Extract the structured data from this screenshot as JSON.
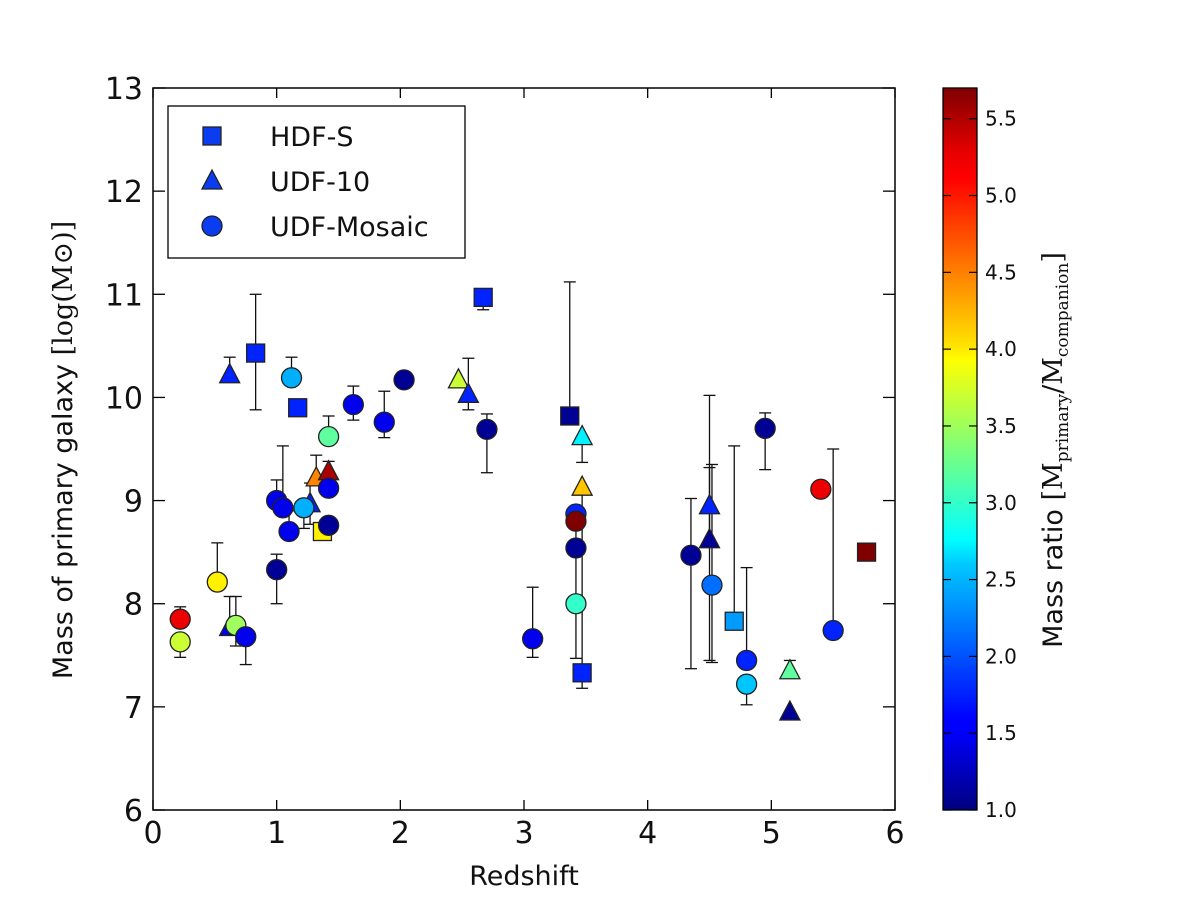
{
  "chart_data": {
    "type": "scatter",
    "title": "",
    "xlabel": "Redshift",
    "ylabel": "Mass of primary galaxy",
    "ylabel_unit": "[log(M⊙)]",
    "xlim": [
      0,
      6
    ],
    "ylim": [
      6,
      13
    ],
    "x_ticks": [
      "0",
      "1",
      "2",
      "3",
      "4",
      "5",
      "6"
    ],
    "y_ticks": [
      "6",
      "7",
      "8",
      "9",
      "10",
      "11",
      "12",
      "13"
    ],
    "grid": false,
    "legend_position": "top-left",
    "colorbar": {
      "label": "Mass ratio",
      "label_unit": "[M",
      "label_sub1": "primary",
      "label_mid": "/M",
      "label_sub2": "companion",
      "label_end": "]",
      "colormap": "jet",
      "range": [
        1.0,
        5.7
      ],
      "ticks": [
        "1.0",
        "1.5",
        "2.0",
        "2.5",
        "3.0",
        "3.5",
        "4.0",
        "4.5",
        "5.0",
        "5.5"
      ]
    },
    "series": [
      {
        "name": "HDF-S",
        "marker": "square",
        "legend_color": "#0b3cf0",
        "points": [
          {
            "x": 0.83,
            "y": 10.43,
            "ratio": 1.75,
            "err_lo": 0.55,
            "err_hi": 0.57
          },
          {
            "x": 1.17,
            "y": 9.9,
            "ratio": 1.75,
            "err_lo": 0,
            "err_hi": 0
          },
          {
            "x": 1.37,
            "y": 8.7,
            "ratio": 4.0,
            "err_lo": 0,
            "err_hi": 0
          },
          {
            "x": 2.67,
            "y": 10.97,
            "ratio": 1.75,
            "err_lo": 0.12,
            "err_hi": 0
          },
          {
            "x": 3.37,
            "y": 9.82,
            "ratio": 1.1,
            "err_lo": 0,
            "err_hi": 1.3
          },
          {
            "x": 3.47,
            "y": 7.33,
            "ratio": 1.75,
            "err_lo": 0.15,
            "err_hi": 1.8
          },
          {
            "x": 4.7,
            "y": 7.83,
            "ratio": 2.3,
            "err_lo": 0,
            "err_hi": 1.7
          },
          {
            "x": 5.77,
            "y": 8.5,
            "ratio": 5.7,
            "err_lo": 0,
            "err_hi": 0
          }
        ]
      },
      {
        "name": "UDF-10",
        "marker": "triangle",
        "legend_color": "#0b3cf0",
        "points": [
          {
            "x": 0.62,
            "y": 10.22,
            "ratio": 1.75,
            "err_lo": 0,
            "err_hi": 0.17
          },
          {
            "x": 0.62,
            "y": 7.77,
            "ratio": 1.5,
            "err_lo": 0,
            "err_hi": 0.3
          },
          {
            "x": 1.27,
            "y": 8.97,
            "ratio": 1.75,
            "err_lo": 0.2,
            "err_hi": 0.2
          },
          {
            "x": 1.32,
            "y": 9.22,
            "ratio": 4.5,
            "err_lo": 0,
            "err_hi": 0.22
          },
          {
            "x": 1.42,
            "y": 9.28,
            "ratio": 5.5,
            "err_lo": 0,
            "err_hi": 0.1
          },
          {
            "x": 2.47,
            "y": 10.17,
            "ratio": 3.7,
            "err_lo": 0,
            "err_hi": 0
          },
          {
            "x": 2.55,
            "y": 10.03,
            "ratio": 1.75,
            "err_lo": 0.15,
            "err_hi": 0.35
          },
          {
            "x": 3.47,
            "y": 9.62,
            "ratio": 2.7,
            "err_lo": 0.25,
            "err_hi": 0
          },
          {
            "x": 3.47,
            "y": 9.13,
            "ratio": 4.2,
            "err_lo": 0,
            "err_hi": 0
          },
          {
            "x": 4.5,
            "y": 8.95,
            "ratio": 1.75,
            "err_lo": 1.5,
            "err_hi": 1.07
          },
          {
            "x": 4.5,
            "y": 8.62,
            "ratio": 1.1,
            "err_lo": 0,
            "err_hi": 0.7
          },
          {
            "x": 5.15,
            "y": 7.35,
            "ratio": 3.2,
            "err_lo": 0,
            "err_hi": 0.1
          },
          {
            "x": 5.15,
            "y": 6.95,
            "ratio": 1.1,
            "err_lo": 0,
            "err_hi": 0
          }
        ]
      },
      {
        "name": "UDF-Mosaic",
        "marker": "circle",
        "legend_color": "#0b3cf0",
        "points": [
          {
            "x": 0.22,
            "y": 7.85,
            "ratio": 5.2,
            "err_lo": 0,
            "err_hi": 0.12
          },
          {
            "x": 0.22,
            "y": 7.63,
            "ratio": 3.7,
            "err_lo": 0.15,
            "err_hi": 0
          },
          {
            "x": 0.52,
            "y": 8.21,
            "ratio": 4.0,
            "err_lo": 0,
            "err_hi": 0.38
          },
          {
            "x": 0.67,
            "y": 7.79,
            "ratio": 3.5,
            "err_lo": 0.2,
            "err_hi": 0.28
          },
          {
            "x": 0.75,
            "y": 7.68,
            "ratio": 1.5,
            "err_lo": 0.27,
            "err_hi": 0
          },
          {
            "x": 1.0,
            "y": 8.33,
            "ratio": 1.1,
            "err_lo": 0.33,
            "err_hi": 0.15
          },
          {
            "x": 1.0,
            "y": 9.0,
            "ratio": 1.5,
            "err_lo": 0,
            "err_hi": 0.2
          },
          {
            "x": 1.05,
            "y": 8.93,
            "ratio": 1.5,
            "err_lo": 0,
            "err_hi": 0.6
          },
          {
            "x": 1.1,
            "y": 8.7,
            "ratio": 1.5,
            "err_lo": 0,
            "err_hi": 0.2
          },
          {
            "x": 1.12,
            "y": 10.19,
            "ratio": 2.4,
            "err_lo": 0,
            "err_hi": 0.2
          },
          {
            "x": 1.22,
            "y": 8.93,
            "ratio": 2.4,
            "err_lo": 0.2,
            "err_hi": 0
          },
          {
            "x": 1.42,
            "y": 9.62,
            "ratio": 3.2,
            "err_lo": 0,
            "err_hi": 0.2
          },
          {
            "x": 1.42,
            "y": 9.12,
            "ratio": 1.5,
            "err_lo": 0,
            "err_hi": 0
          },
          {
            "x": 1.42,
            "y": 8.76,
            "ratio": 1.1,
            "err_lo": 0,
            "err_hi": 0
          },
          {
            "x": 1.62,
            "y": 9.93,
            "ratio": 1.5,
            "err_lo": 0.15,
            "err_hi": 0.18
          },
          {
            "x": 1.87,
            "y": 9.76,
            "ratio": 1.5,
            "err_lo": 0.15,
            "err_hi": 0.3
          },
          {
            "x": 2.03,
            "y": 10.17,
            "ratio": 1.1,
            "err_lo": 0.08,
            "err_hi": 0.05
          },
          {
            "x": 2.7,
            "y": 9.69,
            "ratio": 1.1,
            "err_lo": 0.42,
            "err_hi": 0.15
          },
          {
            "x": 3.07,
            "y": 7.66,
            "ratio": 1.5,
            "err_lo": 0.18,
            "err_hi": 0.5
          },
          {
            "x": 3.42,
            "y": 8.87,
            "ratio": 1.75,
            "err_lo": 1.4,
            "err_hi": 0
          },
          {
            "x": 3.42,
            "y": 8.8,
            "ratio": 5.7,
            "err_lo": 0,
            "err_hi": 0
          },
          {
            "x": 3.42,
            "y": 8.54,
            "ratio": 1.1,
            "err_lo": 0,
            "err_hi": 0
          },
          {
            "x": 3.42,
            "y": 8.0,
            "ratio": 3.0,
            "err_lo": 0,
            "err_hi": 0
          },
          {
            "x": 4.35,
            "y": 8.47,
            "ratio": 1.1,
            "err_lo": 1.1,
            "err_hi": 0.55
          },
          {
            "x": 4.52,
            "y": 8.18,
            "ratio": 2.1,
            "err_lo": 0.75,
            "err_hi": 1.17
          },
          {
            "x": 4.8,
            "y": 7.45,
            "ratio": 1.75,
            "err_lo": 0,
            "err_hi": 0.9
          },
          {
            "x": 4.8,
            "y": 7.22,
            "ratio": 2.5,
            "err_lo": 0.2,
            "err_hi": 0
          },
          {
            "x": 4.95,
            "y": 9.7,
            "ratio": 1.1,
            "err_lo": 0.4,
            "err_hi": 0.15
          },
          {
            "x": 5.4,
            "y": 9.11,
            "ratio": 5.2,
            "err_lo": 0,
            "err_hi": 0
          },
          {
            "x": 5.5,
            "y": 7.74,
            "ratio": 1.75,
            "err_lo": 0,
            "err_hi": 1.76
          }
        ]
      }
    ]
  }
}
